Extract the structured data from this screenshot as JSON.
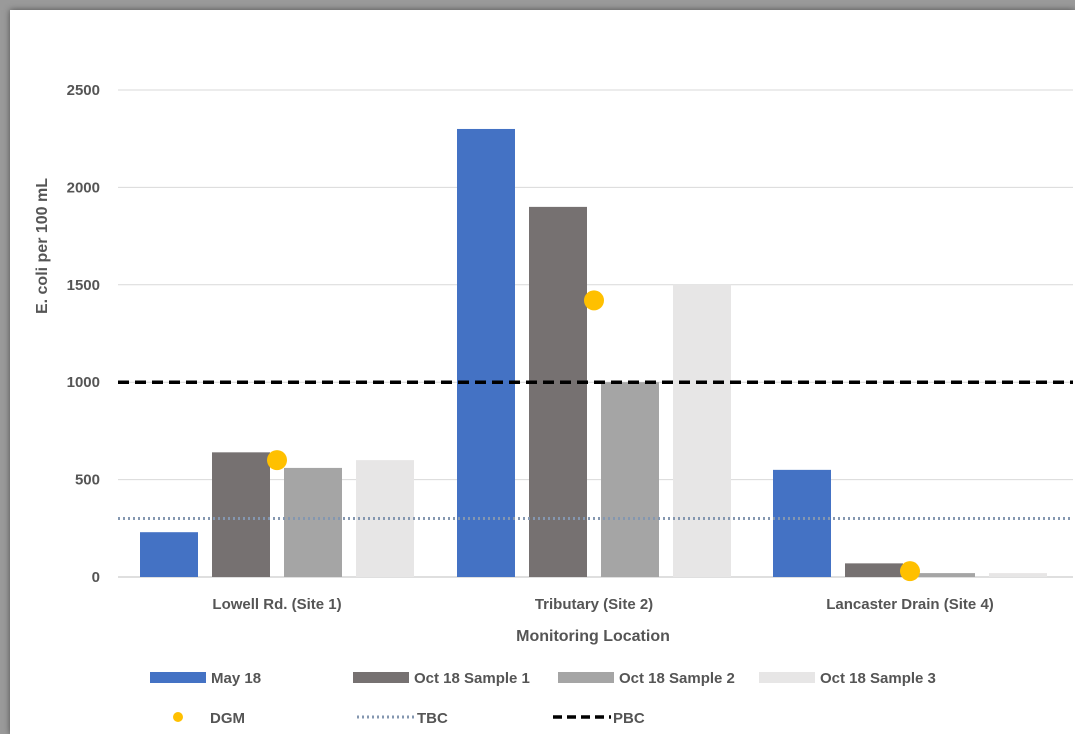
{
  "chart_data": {
    "type": "bar",
    "xlabel": "Monitoring Location",
    "ylabel": "E. coli per 100 mL",
    "ylim": [
      0,
      2500
    ],
    "yticks": [
      0,
      500,
      1000,
      1500,
      2000,
      2500
    ],
    "grid": true,
    "legend_position": "bottom",
    "categories": [
      "Lowell Rd. (Site 1)",
      "Tributary (Site 2)",
      "Lancaster Drain (Site 4)"
    ],
    "series": [
      {
        "name": "May 18",
        "values": [
          230,
          2300,
          550
        ],
        "color": "#4472C4"
      },
      {
        "name": "Oct 18 Sample 1",
        "values": [
          640,
          1900,
          70
        ],
        "color": "#767171"
      },
      {
        "name": "Oct 18 Sample 2",
        "values": [
          560,
          1000,
          20
        ],
        "color": "#A5A5A5"
      },
      {
        "name": "Oct 18 Sample 3",
        "values": [
          600,
          1500,
          20
        ],
        "color": "#E7E6E6"
      }
    ],
    "points": {
      "name": "DGM",
      "values": [
        600,
        1420,
        30
      ],
      "color": "#FFC000"
    },
    "reference_lines": [
      {
        "name": "TBC",
        "value": 300,
        "style": "dotted",
        "color": "#8497B0"
      },
      {
        "name": "PBC",
        "value": 1000,
        "style": "dashed",
        "color": "#000000"
      }
    ]
  }
}
